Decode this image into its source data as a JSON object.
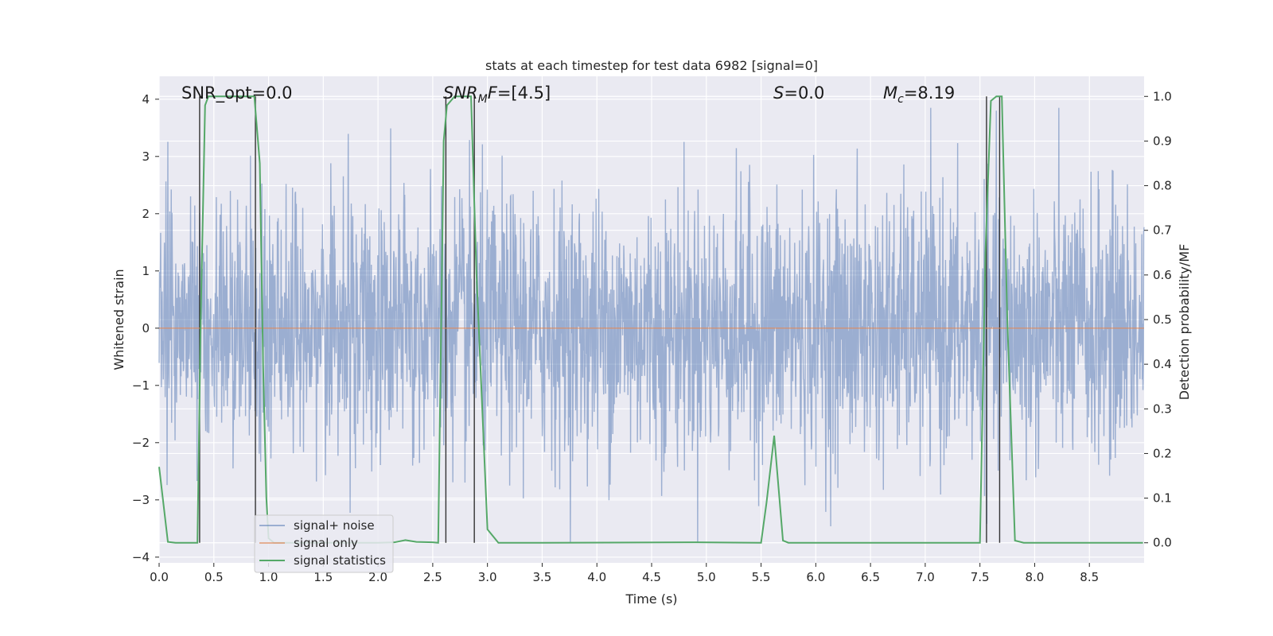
{
  "chart_data": {
    "type": "line",
    "title": "stats at each timestep for test data 6982 [signal=0]",
    "xlabel": "Time (s)",
    "ylabel": "Whitened strain",
    "y2label": "Detection probability/MF",
    "xlim": [
      0,
      9
    ],
    "ylim": [
      -4.1,
      4.4
    ],
    "y2lim": [
      -0.045,
      1.045
    ],
    "xticks": [
      "0.0",
      "0.5",
      "1.0",
      "1.5",
      "2.0",
      "2.5",
      "3.0",
      "3.5",
      "4.0",
      "4.5",
      "5.0",
      "5.5",
      "6.0",
      "6.5",
      "7.0",
      "7.5",
      "8.0",
      "8.5"
    ],
    "yticks": [
      "−4",
      "−3",
      "−2",
      "−1",
      "0",
      "1",
      "2",
      "3",
      "4"
    ],
    "y2ticks": [
      "0.0",
      "0.1",
      "0.2",
      "0.3",
      "0.4",
      "0.5",
      "0.6",
      "0.7",
      "0.8",
      "0.9",
      "1.0"
    ],
    "grid": true,
    "legend_position": "lower-left",
    "series": [
      {
        "name": "signal+ noise",
        "color": "#4c72b0",
        "axis": "left",
        "kind": "noise",
        "approx_std": 1.0
      },
      {
        "name": "signal only",
        "color": "#dd8452",
        "axis": "left",
        "x": [
          0,
          9
        ],
        "y": [
          0,
          0
        ]
      },
      {
        "name": "signal statistics",
        "color": "#55a868",
        "axis": "right",
        "x": [
          0,
          0.08,
          0.15,
          0.3,
          0.35,
          0.38,
          0.42,
          0.45,
          0.7,
          0.87,
          0.92,
          0.95,
          0.98,
          1.0,
          1.05,
          1.1,
          1.2,
          2.0,
          2.15,
          2.25,
          2.35,
          2.5,
          2.55,
          2.6,
          2.63,
          2.7,
          2.85,
          2.9,
          3.0,
          3.1,
          3.5,
          4.9,
          5.5,
          5.55,
          5.62,
          5.7,
          5.75,
          7.5,
          7.55,
          7.6,
          7.65,
          7.7,
          7.75,
          7.82,
          7.9,
          8.99
        ],
        "y": [
          0.17,
          0.002,
          0.0,
          0.0,
          0.0,
          0.5,
          0.98,
          1.0,
          1.0,
          1.0,
          0.85,
          0.4,
          0.1,
          0.01,
          0.0,
          0.0,
          0.0,
          0.0,
          0.001,
          0.006,
          0.002,
          0.001,
          0.0,
          0.9,
          0.98,
          1.0,
          1.0,
          0.6,
          0.03,
          0.0,
          0.0,
          0.001,
          0.0,
          0.09,
          0.24,
          0.005,
          0.0,
          0.0,
          0.65,
          0.99,
          1.0,
          1.0,
          0.5,
          0.005,
          0.0,
          0.0
        ]
      }
    ],
    "vertical_lines": [
      0.37,
      0.88,
      2.62,
      2.88,
      7.56,
      7.68
    ],
    "annotations": [
      "SNR_opt=0.0",
      "SNR_MF=[4.5]",
      "S=0.0",
      "M_c=8.19"
    ]
  }
}
